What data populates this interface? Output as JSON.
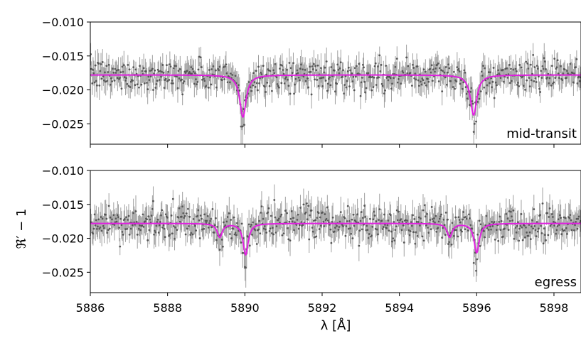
{
  "chart_data": {
    "type": "scatter",
    "xlabel": "λ [Å]",
    "ylabel": "ℜ′ − 1",
    "xlim": [
      5886,
      5898.7
    ],
    "ylim": [
      -0.028,
      -0.01
    ],
    "xticks": [
      5886,
      5888,
      5890,
      5892,
      5894,
      5896,
      5898
    ],
    "xtick_labels": [
      "5886",
      "5888",
      "5890",
      "5892",
      "5894",
      "5896",
      "5898"
    ],
    "yticks": [
      -0.01,
      -0.015,
      -0.02,
      -0.025
    ],
    "ytick_labels": [
      "−0.010",
      "−0.015",
      "−0.020",
      "−0.025"
    ],
    "colors": {
      "data": "#808080",
      "model": "#e020e0"
    },
    "panels": [
      {
        "label": "mid-transit",
        "baseline": -0.0178,
        "noise_std": 0.0011,
        "model_lines": [
          {
            "center": 5889.95,
            "depth": 0.0062,
            "width": 0.1
          },
          {
            "center": 5895.92,
            "depth": 0.0059,
            "width": 0.1
          }
        ]
      },
      {
        "label": "egress",
        "baseline": -0.0178,
        "noise_std": 0.0012,
        "model_lines": [
          {
            "center": 5889.35,
            "depth": 0.002,
            "width": 0.08
          },
          {
            "center": 5890.02,
            "depth": 0.0046,
            "width": 0.08
          },
          {
            "center": 5895.3,
            "depth": 0.002,
            "width": 0.08
          },
          {
            "center": 5896.0,
            "depth": 0.0043,
            "width": 0.08
          }
        ]
      }
    ]
  }
}
